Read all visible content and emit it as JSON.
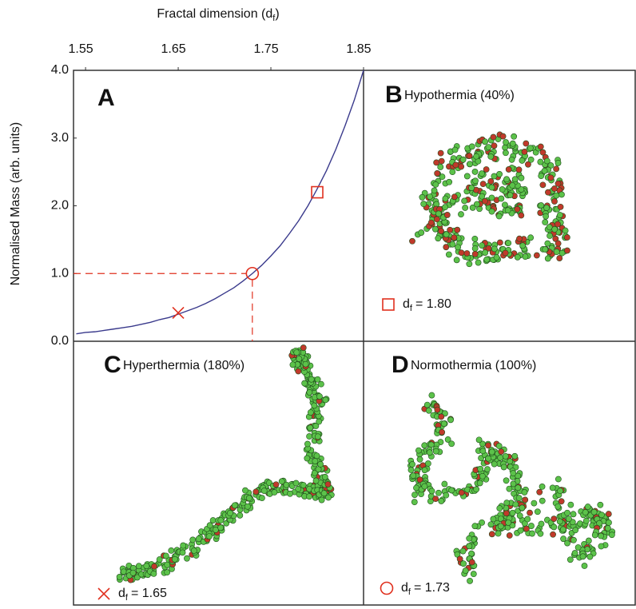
{
  "chart_data": {
    "type": "line",
    "xlabel": [
      "Fractal dimension (d",
      "f",
      ")"
    ],
    "ylabel": "Normalised Mass (arb. units)",
    "xlim": [
      1.537,
      1.85
    ],
    "ylim": [
      0,
      4
    ],
    "xticks": [
      1.55,
      1.65,
      1.75,
      1.85
    ],
    "yticks": [
      {
        "value": 0,
        "label": "0.0"
      },
      {
        "value": 1,
        "label": "1.0"
      },
      {
        "value": 2,
        "label": "2.0"
      },
      {
        "value": 3,
        "label": "3.0"
      },
      {
        "value": 4,
        "label": "4.0"
      }
    ],
    "series": [
      {
        "color": "#3a3a8c",
        "x": [
          1.54,
          1.55,
          1.56,
          1.57,
          1.58,
          1.59,
          1.6,
          1.61,
          1.62,
          1.63,
          1.64,
          1.65,
          1.66,
          1.67,
          1.68,
          1.69,
          1.7,
          1.71,
          1.72,
          1.73,
          1.74,
          1.75,
          1.76,
          1.77,
          1.78,
          1.79,
          1.8,
          1.81,
          1.82,
          1.83,
          1.84,
          1.85
        ],
        "values": [
          0.11,
          0.13,
          0.14,
          0.16,
          0.18,
          0.2,
          0.22,
          0.25,
          0.28,
          0.32,
          0.35,
          0.4,
          0.45,
          0.5,
          0.56,
          0.63,
          0.71,
          0.79,
          0.89,
          1.0,
          1.12,
          1.26,
          1.41,
          1.59,
          1.78,
          2.0,
          2.25,
          2.52,
          2.83,
          3.18,
          3.56,
          4.0
        ]
      }
    ],
    "points": [
      {
        "marker": "square",
        "x": 1.8,
        "value": 2.2,
        "color": "#e0301e"
      },
      {
        "marker": "x",
        "x": 1.65,
        "value": 0.42,
        "color": "#e0301e"
      },
      {
        "marker": "circle",
        "x": 1.73,
        "value": 1.0,
        "color": "#e0301e"
      }
    ],
    "panels": [
      {
        "letter": "A"
      },
      {
        "letter": "B",
        "title": "Hypothermia (40%)",
        "label": [
          "d",
          "f",
          "= 1.80"
        ]
      },
      {
        "letter": "C",
        "title": "Hyperthermia (180%)",
        "label": [
          "d",
          "f",
          "= 1.65"
        ]
      },
      {
        "letter": "D",
        "title": "Normothermia (100%)",
        "label": [
          "d",
          "f",
          "= 1.73"
        ]
      }
    ]
  }
}
